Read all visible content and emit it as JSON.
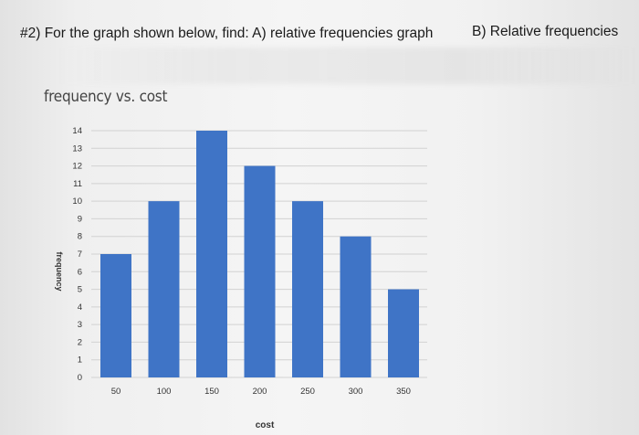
{
  "question": {
    "prompt": "#2) For the graph shown below, find: A) relative frequencies graph",
    "part_b": "B) Relative frequencies"
  },
  "chart_data": {
    "type": "bar",
    "title": "frequency vs. cost",
    "xlabel": "cost",
    "ylabel": "frequency",
    "categories": [
      "50",
      "100",
      "150",
      "200",
      "250",
      "300",
      "350"
    ],
    "values": [
      7,
      10,
      14,
      12,
      10,
      8,
      5
    ],
    "yticks": [
      0,
      1,
      2,
      3,
      4,
      5,
      6,
      7,
      8,
      9,
      10,
      11,
      12,
      13,
      14
    ],
    "ylim": [
      0,
      14
    ],
    "grid": true,
    "bar_color": "#3f74c6",
    "grid_color": "#d2d2d2"
  }
}
